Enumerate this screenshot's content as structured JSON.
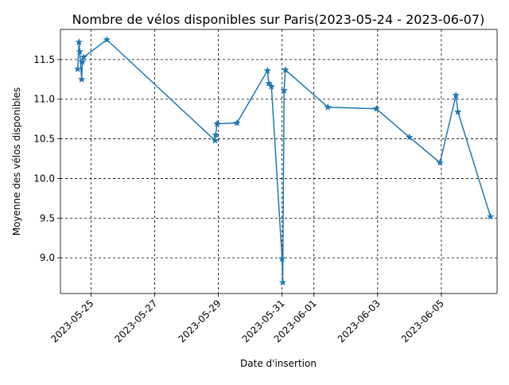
{
  "chart_data": {
    "type": "line",
    "title": "Nombre de vélos disponibles sur Paris(2023-05-24 - 2023-06-07)",
    "xlabel": "Date d'insertion",
    "ylabel": "Moyenne des vélos disponibles",
    "x_tick_labels": [
      "2023-05-25",
      "2023-05-27",
      "2023-05-29",
      "2023-05-31",
      "2023-06-01",
      "2023-06-03",
      "2023-06-05"
    ],
    "x_tick_dates": [
      "2023-05-25",
      "2023-05-27",
      "2023-05-29",
      "2023-05-31",
      "2023-06-01",
      "2023-06-03",
      "2023-06-05"
    ],
    "y_ticks": [
      9.0,
      9.5,
      10.0,
      10.5,
      11.0,
      11.5
    ],
    "xlim": [
      "2023-05-24 01:00",
      "2023-06-06 18:00"
    ],
    "ylim": [
      8.55,
      11.88
    ],
    "grid": true,
    "marker": "star",
    "line_color": "#1f77b4",
    "points": [
      {
        "x": "2023-05-24 14:00",
        "y": 11.38
      },
      {
        "x": "2023-05-24 15:00",
        "y": 11.72
      },
      {
        "x": "2023-05-24 15:30",
        "y": 11.6
      },
      {
        "x": "2023-05-24 17:00",
        "y": 11.25
      },
      {
        "x": "2023-05-24 17:30",
        "y": 11.47
      },
      {
        "x": "2023-05-24 18:30",
        "y": 11.53
      },
      {
        "x": "2023-05-25 12:00",
        "y": 11.75
      },
      {
        "x": "2023-05-28 21:30",
        "y": 10.48
      },
      {
        "x": "2023-05-28 22:00",
        "y": 10.55
      },
      {
        "x": "2023-05-28 23:00",
        "y": 10.69
      },
      {
        "x": "2023-05-29 14:00",
        "y": 10.7
      },
      {
        "x": "2023-05-30 13:00",
        "y": 11.36
      },
      {
        "x": "2023-05-30 14:00",
        "y": 11.2
      },
      {
        "x": "2023-05-30 16:00",
        "y": 11.16
      },
      {
        "x": "2023-05-31 00:00",
        "y": 8.99
      },
      {
        "x": "2023-05-31 00:30",
        "y": 8.69
      },
      {
        "x": "2023-05-31 01:30",
        "y": 11.11
      },
      {
        "x": "2023-05-31 02:30",
        "y": 11.37
      },
      {
        "x": "2023-06-01 10:30",
        "y": 10.9
      },
      {
        "x": "2023-06-02 23:00",
        "y": 10.88
      },
      {
        "x": "2023-06-04 00:00",
        "y": 10.52
      },
      {
        "x": "2023-06-04 23:00",
        "y": 10.2
      },
      {
        "x": "2023-06-05 11:00",
        "y": 11.05
      },
      {
        "x": "2023-06-05 12:30",
        "y": 10.84
      },
      {
        "x": "2023-06-06 13:00",
        "y": 9.52
      }
    ]
  }
}
